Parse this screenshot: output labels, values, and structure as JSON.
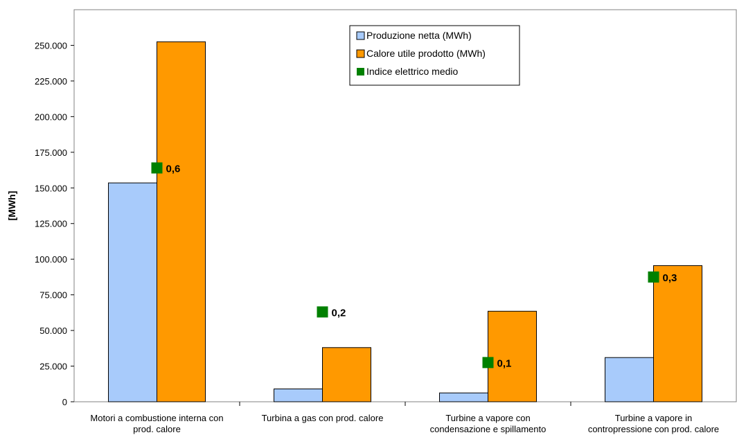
{
  "chart_data": {
    "type": "bar",
    "title": "",
    "xlabel": "",
    "ylabel": "[MWh]",
    "ylim": [
      0,
      275000
    ],
    "yticks": [
      0,
      25000,
      50000,
      75000,
      100000,
      125000,
      150000,
      175000,
      200000,
      225000,
      250000
    ],
    "ytick_labels": [
      "0",
      "25.000",
      "50.000",
      "75.000",
      "100.000",
      "125.000",
      "150.000",
      "175.000",
      "200.000",
      "225.000",
      "250.000"
    ],
    "categories": [
      [
        "Motori a combustione interna con",
        "prod. calore"
      ],
      [
        "Turbina a gas con prod. calore"
      ],
      [
        "Turbine a vapore con",
        "condensazione e spillamento"
      ],
      [
        "Turbine a vapore in",
        "contropressione con prod. calore"
      ]
    ],
    "series": [
      {
        "name": "Produzione netta (MWh)",
        "type": "bar",
        "color": "#a8cbfb",
        "values": [
          153500,
          9000,
          6200,
          31000
        ]
      },
      {
        "name": "Calore utile prodotto (MWh)",
        "type": "bar",
        "color": "#ff9900",
        "values": [
          252500,
          38000,
          63500,
          95500
        ]
      },
      {
        "name": "Indice elettrico medio",
        "type": "marker",
        "color": "#008000",
        "values": [
          0.6,
          0.2,
          0.1,
          0.3
        ],
        "labels": [
          "0,6",
          "0,2",
          "0,1",
          "0,3"
        ],
        "plotted_at": [
          164000,
          63000,
          27500,
          87500
        ]
      }
    ],
    "grid": false,
    "legend_position": "top-center"
  }
}
